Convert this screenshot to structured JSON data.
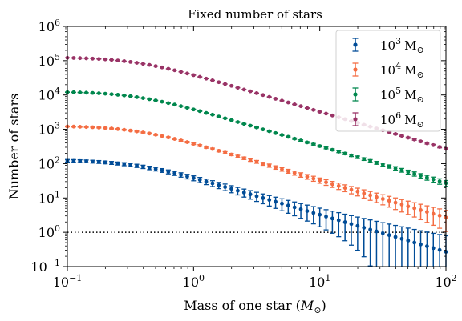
{
  "chart_data": {
    "type": "scatter",
    "title": "Fixed number of stars",
    "xlabel": "Mass of one star ($M_\\odot$)",
    "ylabel": "Number of stars",
    "x_scale": "log",
    "y_scale": "log",
    "xlim": [
      0.1,
      100
    ],
    "ylim": [
      0.1,
      1000000
    ],
    "x_ticks": [
      {
        "value": 0.1,
        "base": "10",
        "exp": "−1"
      },
      {
        "value": 1,
        "base": "10",
        "exp": "0"
      },
      {
        "value": 10,
        "base": "10",
        "exp": "1"
      },
      {
        "value": 100,
        "base": "10",
        "exp": "2"
      }
    ],
    "y_ticks": [
      {
        "value": 0.1,
        "base": "10",
        "exp": "−1"
      },
      {
        "value": 1,
        "base": "10",
        "exp": "0"
      },
      {
        "value": 10,
        "base": "10",
        "exp": "1"
      },
      {
        "value": 100,
        "base": "10",
        "exp": "2"
      },
      {
        "value": 1000,
        "base": "10",
        "exp": "3"
      },
      {
        "value": 10000,
        "base": "10",
        "exp": "4"
      },
      {
        "value": 100000,
        "base": "10",
        "exp": "5"
      },
      {
        "value": 1000000,
        "base": "10",
        "exp": "6"
      }
    ],
    "reference_line": {
      "y": 1,
      "style": "dotted",
      "color": "#000000"
    },
    "legend_position": "top-right",
    "series": [
      {
        "name": "10^3 M_⊙",
        "color": "#004c97",
        "total_mass": 1000
      },
      {
        "name": "10^4 M_⊙",
        "color": "#f46d43",
        "total_mass": 10000
      },
      {
        "name": "10^5 M_⊙",
        "color": "#00874d",
        "total_mass": 100000
      },
      {
        "name": "10^6 M_⊙",
        "color": "#993366",
        "total_mass": 1000000
      }
    ],
    "x": [
      0.1,
      0.1122,
      0.1259,
      0.1413,
      0.1585,
      0.1778,
      0.1995,
      0.2239,
      0.2512,
      0.2818,
      0.3162,
      0.3548,
      0.3981,
      0.4467,
      0.5012,
      0.5623,
      0.631,
      0.7079,
      0.7943,
      0.8913,
      1.0,
      1.122,
      1.259,
      1.413,
      1.585,
      1.778,
      1.995,
      2.239,
      2.512,
      2.818,
      3.162,
      3.548,
      3.981,
      4.467,
      5.012,
      5.623,
      6.31,
      7.079,
      7.943,
      8.913,
      10.0,
      11.22,
      12.59,
      14.13,
      15.85,
      17.78,
      19.95,
      22.39,
      25.12,
      28.18,
      31.62,
      35.48,
      39.81,
      44.67,
      50.12,
      56.23,
      63.1,
      70.79,
      79.43,
      89.13,
      100.0
    ],
    "y_at_1e6": [
      121000,
      120000,
      118600,
      116900,
      114800,
      112200,
      109100,
      105500,
      101400,
      96900,
      92000,
      86700,
      81100,
      75400,
      69500,
      63700,
      58000,
      52500,
      47300,
      42400,
      37900,
      33800,
      30000,
      26700,
      23600,
      20900,
      18500,
      16300,
      14400,
      12800,
      11300,
      9950,
      8790,
      7760,
      6850,
      6050,
      5340,
      4720,
      4160,
      3680,
      3250,
      2870,
      2530,
      2240,
      1970,
      1740,
      1540,
      1360,
      1200,
      1060,
      937,
      827,
      731,
      645,
      570,
      503,
      444,
      392,
      346,
      306,
      270
    ]
  },
  "legend": [
    {
      "base": "10",
      "exp": "3",
      "unit": "M",
      "sub": "⊙"
    },
    {
      "base": "10",
      "exp": "4",
      "unit": "M",
      "sub": "⊙"
    },
    {
      "base": "10",
      "exp": "5",
      "unit": "M",
      "sub": "⊙"
    },
    {
      "base": "10",
      "exp": "6",
      "unit": "M",
      "sub": "⊙"
    }
  ],
  "axis_text": {
    "xlabel_main": "Mass of one star (",
    "xlabel_M": "M",
    "xlabel_sub": "⊙",
    "xlabel_end": ")"
  }
}
